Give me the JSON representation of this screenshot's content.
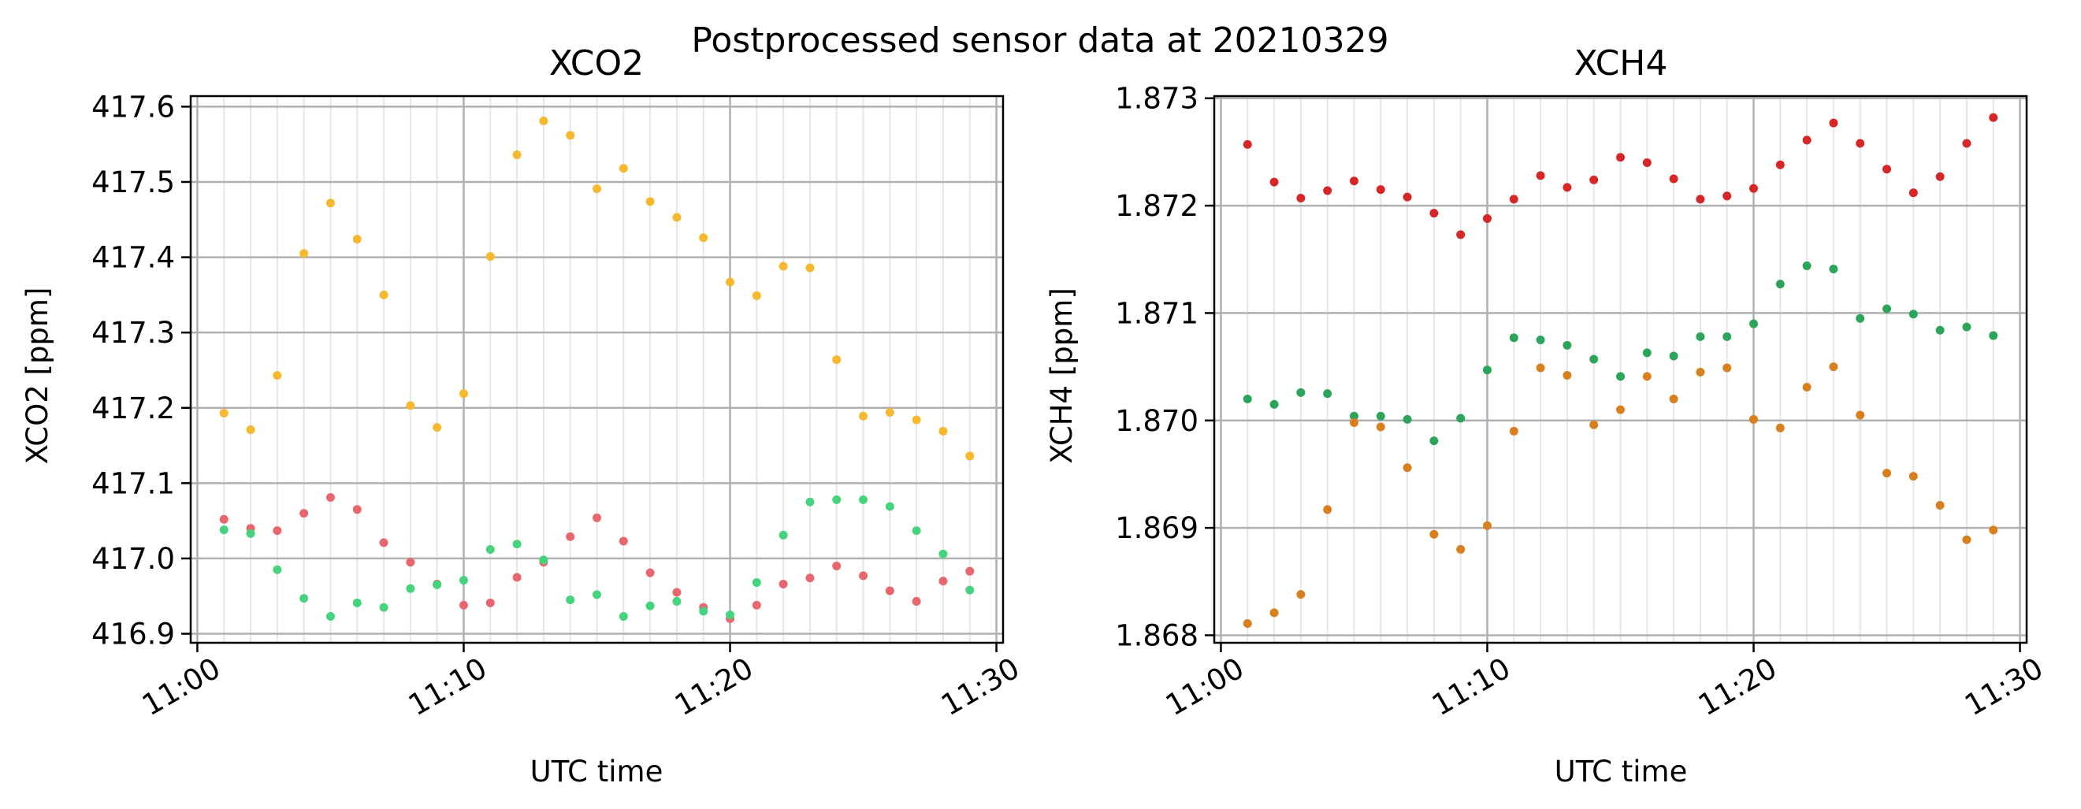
{
  "figure": {
    "suptitle": "Postprocessed sensor data at 20210329"
  },
  "chart_data": [
    {
      "type": "scatter",
      "title": "XCO2",
      "xlabel": "UTC time",
      "ylabel": "XCO2 [ppm]",
      "xlim": [
        "10:59:45",
        "11:30:15"
      ],
      "ylim": [
        416.888,
        417.614
      ],
      "xticks": [
        "11:00",
        "11:10",
        "11:20",
        "11:30"
      ],
      "yticks": [
        416.9,
        417.0,
        417.1,
        417.2,
        417.3,
        417.4,
        417.5,
        417.6
      ],
      "ytick_decimals": 1,
      "grid": true,
      "minor_grid": true,
      "x": [
        "11:01",
        "11:02",
        "11:03",
        "11:04",
        "11:05",
        "11:06",
        "11:07",
        "11:08",
        "11:09",
        "11:10",
        "11:11",
        "11:12",
        "11:13",
        "11:14",
        "11:15",
        "11:16",
        "11:17",
        "11:18",
        "11:19",
        "11:20",
        "11:21",
        "11:22",
        "11:23",
        "11:24",
        "11:25",
        "11:26",
        "11:27",
        "11:28",
        "11:29"
      ],
      "series": [
        {
          "color": "#f5b82e",
          "values": [
            417.193,
            417.171,
            417.243,
            417.405,
            417.472,
            417.424,
            417.35,
            417.203,
            417.174,
            417.219,
            417.401,
            417.536,
            417.581,
            417.562,
            417.491,
            417.518,
            417.474,
            417.453,
            417.426,
            417.367,
            417.349,
            417.388,
            417.386,
            417.264,
            417.189,
            417.194,
            417.184,
            417.169,
            417.136
          ]
        },
        {
          "color": "#e8676f",
          "values": [
            417.052,
            417.04,
            417.037,
            417.06,
            417.081,
            417.065,
            417.021,
            416.995,
            416.966,
            416.938,
            416.941,
            416.975,
            416.995,
            417.029,
            417.054,
            417.023,
            416.981,
            416.955,
            416.935,
            416.92,
            416.938,
            416.966,
            416.974,
            416.99,
            416.977,
            416.957,
            416.943,
            416.97,
            416.983
          ]
        },
        {
          "color": "#46d37d",
          "values": [
            417.038,
            417.033,
            416.985,
            416.947,
            416.923,
            416.941,
            416.935,
            416.96,
            416.965,
            416.971,
            417.012,
            417.019,
            416.998,
            416.945,
            416.952,
            416.923,
            416.937,
            416.943,
            416.93,
            416.925,
            416.968,
            417.031,
            417.075,
            417.078,
            417.078,
            417.069,
            417.037,
            417.006,
            416.958
          ]
        }
      ]
    },
    {
      "type": "scatter",
      "title": "XCH4",
      "xlabel": "UTC time",
      "ylabel": "XCH4 [ppm]",
      "xlim": [
        "10:59:45",
        "11:30:15"
      ],
      "ylim": [
        1.86793,
        1.87302
      ],
      "xticks": [
        "11:00",
        "11:10",
        "11:20",
        "11:30"
      ],
      "yticks": [
        1.868,
        1.869,
        1.87,
        1.871,
        1.872,
        1.873
      ],
      "ytick_decimals": 3,
      "grid": true,
      "minor_grid": true,
      "x": [
        "11:01",
        "11:02",
        "11:03",
        "11:04",
        "11:05",
        "11:06",
        "11:07",
        "11:08",
        "11:09",
        "11:10",
        "11:11",
        "11:12",
        "11:13",
        "11:14",
        "11:15",
        "11:16",
        "11:17",
        "11:18",
        "11:19",
        "11:20",
        "11:21",
        "11:22",
        "11:23",
        "11:24",
        "11:25",
        "11:26",
        "11:27",
        "11:28",
        "11:29"
      ],
      "series": [
        {
          "color": "#d62728",
          "values": [
            1.87257,
            1.87222,
            1.87207,
            1.87214,
            1.87223,
            1.87215,
            1.87208,
            1.87193,
            1.87173,
            1.87188,
            1.87206,
            1.87228,
            1.87217,
            1.87224,
            1.87245,
            1.8724,
            1.87225,
            1.87206,
            1.87209,
            1.87216,
            1.87238,
            1.87261,
            1.87277,
            1.87258,
            1.87234,
            1.87212,
            1.87227,
            1.87258,
            1.87282
          ]
        },
        {
          "color": "#2ca55a",
          "values": [
            1.8702,
            1.87015,
            1.87026,
            1.87025,
            1.87004,
            1.87004,
            1.87001,
            1.86981,
            1.87002,
            1.87047,
            1.87077,
            1.87075,
            1.8707,
            1.87057,
            1.87041,
            1.87063,
            1.8706,
            1.87078,
            1.87078,
            1.8709,
            1.87127,
            1.87144,
            1.87141,
            1.87095,
            1.87104,
            1.87099,
            1.87084,
            1.87087,
            1.87079
          ]
        },
        {
          "color": "#d87f1f",
          "values": [
            1.86811,
            1.86821,
            1.86838,
            1.86917,
            1.86998,
            1.86994,
            1.86956,
            1.86894,
            1.8688,
            1.86902,
            1.8699,
            1.87049,
            1.87042,
            1.86996,
            1.8701,
            1.87041,
            1.8702,
            1.87045,
            1.87049,
            1.87001,
            1.86993,
            1.87031,
            1.8705,
            1.87005,
            1.86951,
            1.86948,
            1.86921,
            1.86889,
            1.86898
          ]
        }
      ]
    }
  ]
}
